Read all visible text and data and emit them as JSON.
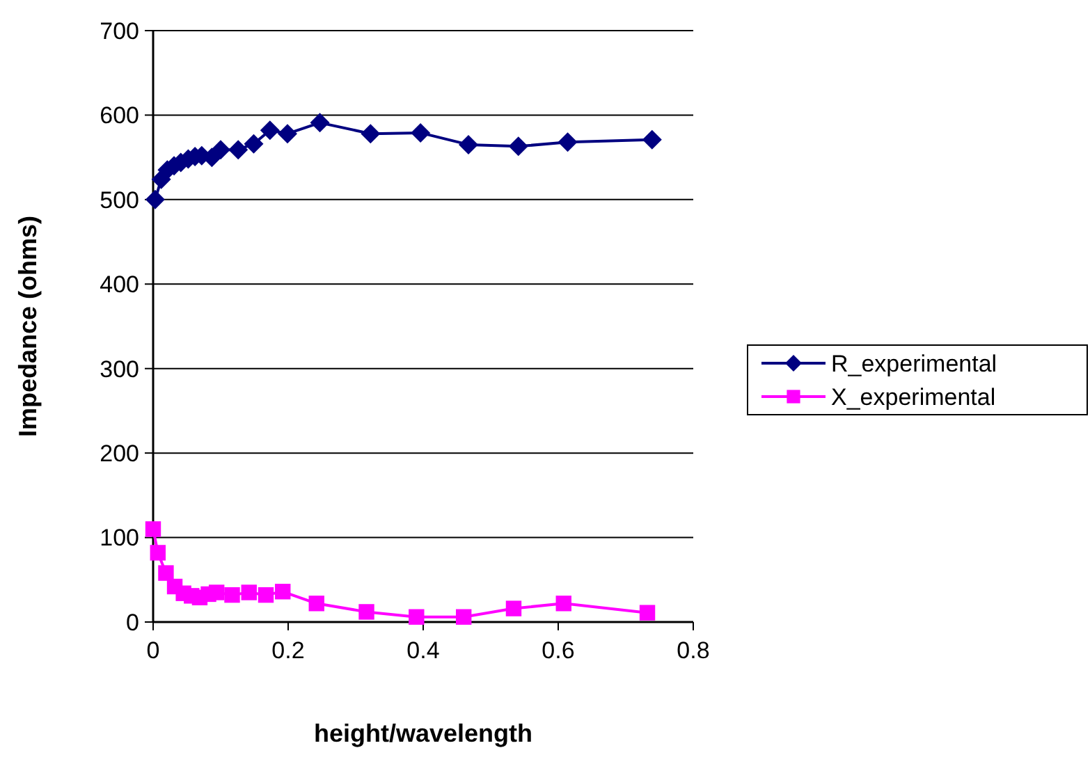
{
  "chart_data": {
    "type": "line",
    "xlabel": "height/wavelength",
    "ylabel": "Impedance (ohms)",
    "xlim": [
      0,
      0.8
    ],
    "xticks": [
      0,
      0.2,
      0.4,
      0.6,
      0.8
    ],
    "ylim": [
      0,
      700
    ],
    "yticks": [
      0,
      100,
      200,
      300,
      400,
      500,
      600,
      700
    ],
    "grid": "y",
    "legend": "right",
    "series": [
      {
        "name": "R_experimental",
        "color": "#000080",
        "marker": "diamond",
        "x": [
          0.003,
          0.012,
          0.021,
          0.031,
          0.041,
          0.052,
          0.062,
          0.072,
          0.087,
          0.1,
          0.126,
          0.149,
          0.173,
          0.199,
          0.247,
          0.322,
          0.396,
          0.467,
          0.541,
          0.614,
          0.739
        ],
        "values": [
          500,
          524,
          535,
          540,
          544,
          548,
          551,
          552,
          550,
          559,
          559,
          566,
          582,
          578,
          591,
          578,
          579,
          565,
          563,
          568,
          571
        ]
      },
      {
        "name": "X_experimental",
        "color": "#ff00ff",
        "marker": "square",
        "x": [
          0,
          0.007,
          0.019,
          0.032,
          0.045,
          0.057,
          0.069,
          0.082,
          0.094,
          0.117,
          0.142,
          0.167,
          0.192,
          0.242,
          0.316,
          0.39,
          0.46,
          0.534,
          0.608,
          0.732
        ],
        "values": [
          110,
          82,
          58,
          42,
          34,
          31,
          29,
          33,
          35,
          32,
          35,
          32,
          36,
          22,
          12,
          6,
          6,
          16,
          22,
          11
        ]
      }
    ]
  }
}
